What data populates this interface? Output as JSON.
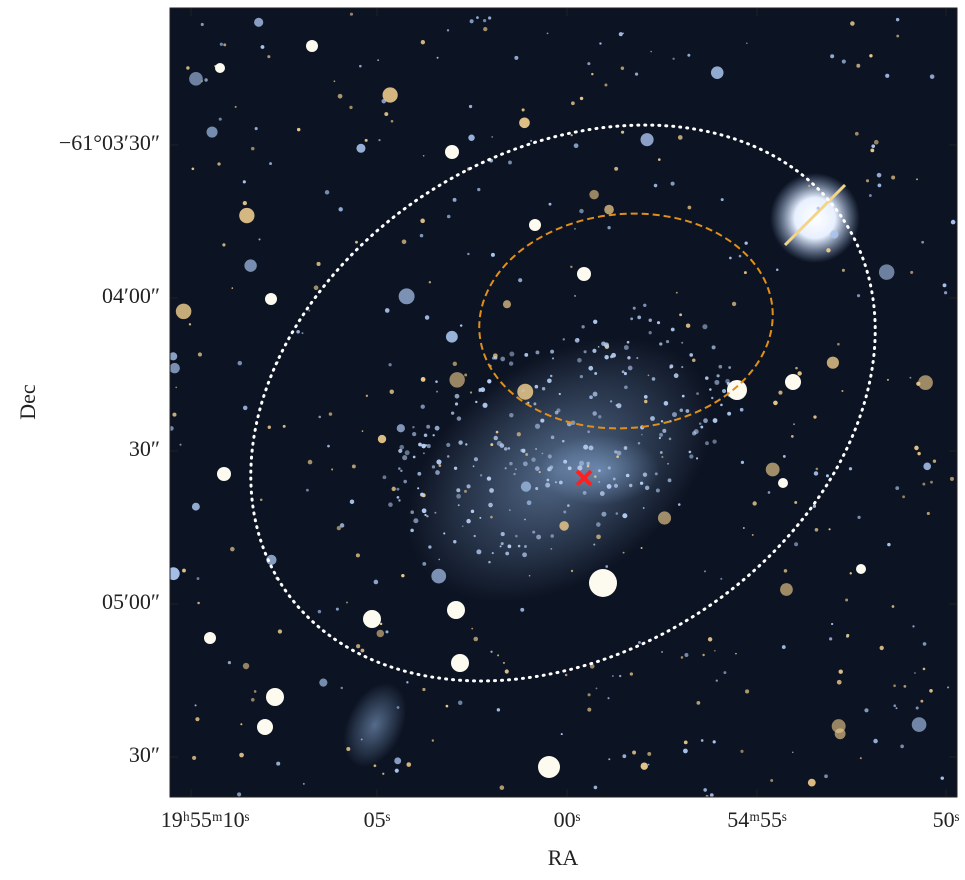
{
  "figure": {
    "x_axis": {
      "label": "RA",
      "ticks": [
        "19ʰ55ᵐ10ˢ",
        "05ˢ",
        "00ˢ",
        "54ᵐ55ˢ",
        "50ˢ"
      ]
    },
    "y_axis": {
      "label": "Dec",
      "ticks": [
        "−61°03′30″",
        "04′00″",
        "30″",
        "05′00″",
        "30″"
      ]
    }
  }
}
